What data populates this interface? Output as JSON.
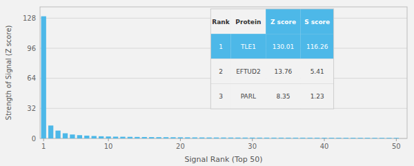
{
  "chart_data": {
    "type": "bar",
    "xlabel": "Signal Rank (Top 50)",
    "ylabel": "Strength of Signal (Z score)",
    "x": [
      1,
      2,
      3,
      4,
      5,
      6,
      7,
      8,
      9,
      10,
      11,
      12,
      13,
      14,
      15,
      16,
      17,
      18,
      19,
      20,
      21,
      22,
      23,
      24,
      25,
      26,
      27,
      28,
      29,
      30,
      31,
      32,
      33,
      34,
      35,
      36,
      37,
      38,
      39,
      40,
      41,
      42,
      43,
      44,
      45,
      46,
      47,
      48,
      49,
      50
    ],
    "values": [
      130.01,
      13.76,
      8.35,
      5.5,
      4.2,
      3.5,
      3.0,
      2.6,
      2.3,
      2.1,
      1.9,
      1.8,
      1.7,
      1.6,
      1.5,
      1.4,
      1.35,
      1.3,
      1.25,
      1.2,
      1.15,
      1.1,
      1.05,
      1.02,
      1.0,
      0.98,
      0.95,
      0.93,
      0.91,
      0.89,
      0.87,
      0.85,
      0.84,
      0.83,
      0.82,
      0.81,
      0.8,
      0.79,
      0.78,
      0.77,
      0.76,
      0.75,
      0.74,
      0.73,
      0.72,
      0.71,
      0.7,
      0.69,
      0.68,
      0.67
    ],
    "color": "#4db8e8",
    "xlim": [
      0.5,
      51.5
    ],
    "xticks": [
      1,
      10,
      20,
      30,
      40,
      50
    ],
    "ylim": [
      0,
      140
    ],
    "yticks": [
      0,
      32,
      64,
      96,
      128
    ],
    "grid": true,
    "table": {
      "headers": [
        "Rank",
        "Protein",
        "Z score",
        "S score"
      ],
      "rows": [
        [
          "1",
          "TLE1",
          "130.01",
          "116.26"
        ],
        [
          "2",
          "EFTUD2",
          "13.76",
          "5.41"
        ],
        [
          "3",
          "PARL",
          "8.35",
          "1.23"
        ]
      ]
    }
  }
}
